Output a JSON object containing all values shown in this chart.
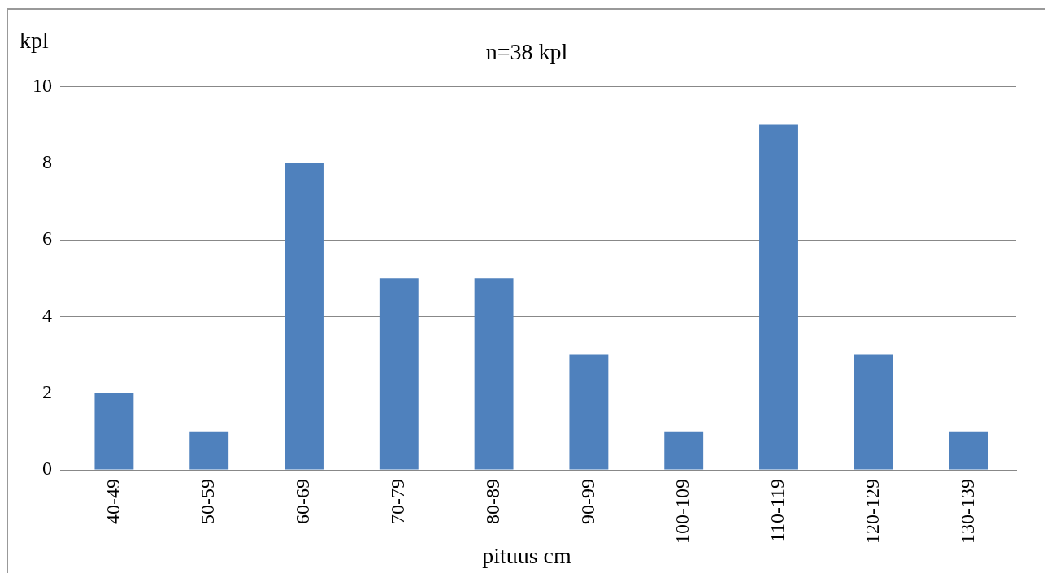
{
  "chart_data": {
    "type": "bar",
    "title": "n=38 kpl",
    "ylabel": "kpl",
    "xlabel": "pituus cm",
    "categories": [
      "40-49",
      "50-59",
      "60-69",
      "70-79",
      "80-89",
      "90-99",
      "100-109",
      "110-119",
      "120-129",
      "130-139"
    ],
    "values": [
      2,
      1,
      8,
      5,
      5,
      3,
      1,
      9,
      3,
      1
    ],
    "color": "#4f81bd",
    "ylim": [
      0,
      10
    ],
    "yticks": [
      0,
      2,
      4,
      6,
      8,
      10
    ],
    "grid": "y",
    "legend": false
  }
}
